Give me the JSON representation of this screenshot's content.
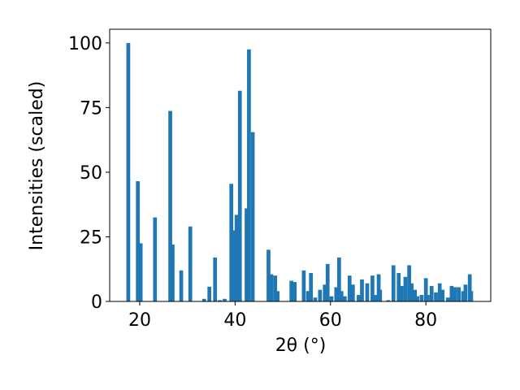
{
  "chart_data": {
    "type": "bar",
    "xlabel": "2θ (°)",
    "ylabel": "Intensities (scaled)",
    "x": [
      17.6,
      19.6,
      20.2,
      23.2,
      26.4,
      26.9,
      28.7,
      30.6,
      33.5,
      34.6,
      35.8,
      36.8,
      37.8,
      39.2,
      39.7,
      40.3,
      41.0,
      42.4,
      42.9,
      43.7,
      47.0,
      47.6,
      48.4,
      48.9,
      51.8,
      52.5,
      54.4,
      55.3,
      55.9,
      56.8,
      57.8,
      58.8,
      59.4,
      60.2,
      61.2,
      61.8,
      62.3,
      63.0,
      64.0,
      64.7,
      65.9,
      66.6,
      67.7,
      68.8,
      69.4,
      70.1,
      70.4,
      72.1,
      73.2,
      74.3,
      74.9,
      75.7,
      76.5,
      77.0,
      77.7,
      78.2,
      79.1,
      80.0,
      80.4,
      81.2,
      82.1,
      82.9,
      83.5,
      84.6,
      85.4,
      86.1,
      86.9,
      87.8,
      88.3,
      89.2,
      89.5
    ],
    "values": [
      100,
      46.5,
      22.5,
      32.5,
      73.7,
      22,
      12,
      29,
      1,
      5.7,
      17,
      0.5,
      1,
      45.5,
      27.5,
      33.5,
      81.5,
      36,
      97.5,
      65.5,
      20,
      10.5,
      10,
      4,
      8,
      7.5,
      12,
      4,
      11,
      1.5,
      4.5,
      6.5,
      14.5,
      2,
      5.5,
      17,
      4,
      2,
      10,
      6.5,
      2.5,
      8.5,
      7,
      10,
      2.5,
      10.5,
      4.5,
      0.5,
      14,
      11,
      6,
      9.5,
      14,
      7,
      4.5,
      2,
      2.5,
      9,
      2.5,
      6,
      3.5,
      7,
      4.5,
      1.5,
      6,
      5.5,
      5.5,
      4,
      6.5,
      10.5,
      4
    ],
    "color": "#1f77b4",
    "xlim": [
      13.7,
      93.6
    ],
    "ylim": [
      0,
      105.3
    ],
    "xticks": [
      20,
      40,
      60,
      80
    ],
    "yticks": [
      0,
      25,
      50,
      75,
      100
    ]
  }
}
